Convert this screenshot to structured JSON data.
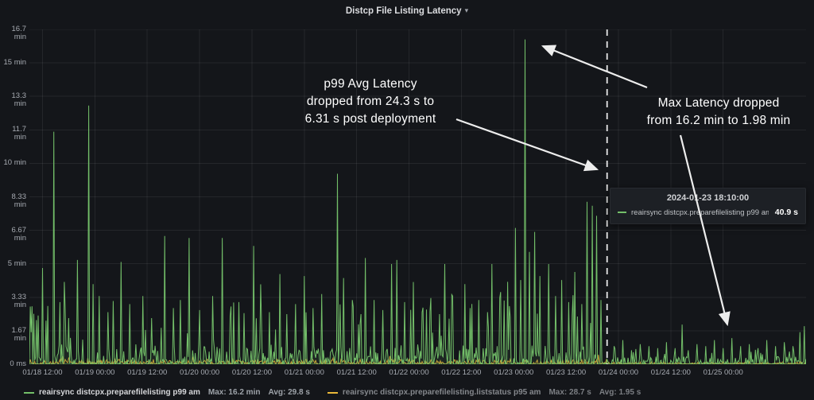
{
  "header": {
    "title": "Distcp File Listing Latency"
  },
  "icons": {
    "caret": "▾"
  },
  "chart_data": {
    "type": "line",
    "title": "Distcp File Listing Latency",
    "grid": true,
    "legend_position": "bottom-left",
    "y_axis": {
      "max_minutes": 16.7,
      "min": 0
    },
    "x_axis": {
      "span_hours": 178,
      "first_tick_hour": 3,
      "tick_interval_hours": 12,
      "start": "01/18 12:00"
    },
    "y_ticks": [
      "0 ms",
      "1.67 min",
      "3.33 min",
      "5 min",
      "6.67 min",
      "8.33 min",
      "10 min",
      "11.7 min",
      "13.3 min",
      "15 min",
      "16.7 min"
    ],
    "x_ticks": [
      "01/18 12:00",
      "01/19 00:00",
      "01/19 12:00",
      "01/20 00:00",
      "01/20 12:00",
      "01/21 00:00",
      "01/21 12:00",
      "01/22 00:00",
      "01/22 12:00",
      "01/23 00:00",
      "01/23 12:00",
      "01/24 00:00",
      "01/24 12:00",
      "01/25 00:00"
    ],
    "deployment_hour": 132.4,
    "deployment_time": "2024-01-23 18:10:00",
    "series": [
      {
        "name": "reairsync distcpx.preparefilelisting p99 am",
        "color": "#73bf69",
        "max": "16.2 min",
        "avg": "29.8 s",
        "unit": "minutes",
        "spikes": [
          [
            1.5,
            2.2
          ],
          [
            3,
            4.8
          ],
          [
            5.6,
            11.6
          ],
          [
            7,
            3.1
          ],
          [
            9,
            2.3
          ],
          [
            11,
            5.2
          ],
          [
            13.5,
            12.9
          ],
          [
            14.5,
            4.0
          ],
          [
            16,
            3.4
          ],
          [
            18,
            2.6
          ],
          [
            21,
            5.1
          ],
          [
            23,
            3.0
          ],
          [
            26,
            3.4
          ],
          [
            28,
            2.3
          ],
          [
            31,
            6.4
          ],
          [
            33,
            2.8
          ],
          [
            34.5,
            3.2
          ],
          [
            36.5,
            6.3
          ],
          [
            39,
            2.7
          ],
          [
            42,
            3.4
          ],
          [
            44.3,
            6.3
          ],
          [
            46,
            2.4
          ],
          [
            48,
            3.1
          ],
          [
            51.4,
            5.9
          ],
          [
            53,
            3.3
          ],
          [
            55,
            2.6
          ],
          [
            57.4,
            4.5
          ],
          [
            59,
            2.5
          ],
          [
            61,
            3.0
          ],
          [
            63,
            4.4
          ],
          [
            65,
            2.8
          ],
          [
            67,
            3.5
          ],
          [
            70.5,
            9.5
          ],
          [
            72,
            4.3
          ],
          [
            74,
            3.2
          ],
          [
            76,
            2.5
          ],
          [
            77.1,
            5.3
          ],
          [
            79,
            3.2
          ],
          [
            81,
            2.7
          ],
          [
            83,
            5.0
          ],
          [
            84.3,
            5.2
          ],
          [
            86,
            3.1
          ],
          [
            88,
            4.1
          ],
          [
            90,
            2.6
          ],
          [
            92,
            3.3
          ],
          [
            94,
            2.5
          ],
          [
            95.3,
            5.0
          ],
          [
            97,
            3.4
          ],
          [
            99.8,
            4.0
          ],
          [
            101,
            2.8
          ],
          [
            103,
            3.2
          ],
          [
            105,
            2.6
          ],
          [
            106,
            5.0
          ],
          [
            108,
            3.6
          ],
          [
            110,
            2.9
          ],
          [
            111.3,
            6.8
          ],
          [
            112.5,
            4.2
          ],
          [
            113.5,
            16.2
          ],
          [
            114.5,
            5.6
          ],
          [
            115.7,
            6.6
          ],
          [
            117,
            4.4
          ],
          [
            119,
            5.0
          ],
          [
            120.5,
            3.4
          ],
          [
            122,
            4.2
          ],
          [
            123.5,
            3.1
          ],
          [
            125,
            4.6
          ],
          [
            126.5,
            3.0
          ],
          [
            127.7,
            8.1
          ],
          [
            129,
            7.9
          ],
          [
            129.9,
            7.4
          ],
          [
            131,
            3.2
          ],
          [
            134,
            0.9
          ],
          [
            136,
            1.2
          ],
          [
            138,
            0.7
          ],
          [
            140,
            1.0
          ],
          [
            142,
            0.9
          ],
          [
            144,
            0.8
          ],
          [
            146,
            1.1
          ],
          [
            148,
            0.8
          ],
          [
            149.5,
            1.98
          ],
          [
            151,
            0.7
          ],
          [
            153,
            1.0
          ],
          [
            155,
            0.9
          ],
          [
            157,
            1.2
          ],
          [
            159,
            0.8
          ],
          [
            161,
            1.3
          ],
          [
            163,
            0.9
          ],
          [
            165,
            1.0
          ],
          [
            167,
            0.8
          ],
          [
            169,
            1.2
          ],
          [
            171,
            0.9
          ],
          [
            173,
            1.1
          ],
          [
            175,
            0.9
          ],
          [
            176.5,
            1.6
          ],
          [
            177.5,
            1.9
          ]
        ]
      },
      {
        "name": "reairsync distcpx.preparefilelisting.liststatus p95 am",
        "color": "#eab839",
        "max": "28.7 s",
        "avg": "1.95 s",
        "unit": "minutes"
      }
    ]
  },
  "annotations": {
    "p99_line1": "p99 Avg Latency",
    "p99_line2": "dropped from 24.3 s to",
    "p99_line3": "6.31 s post deployment",
    "max_line1": "Max Latency dropped",
    "max_line2": "from 16.2 min to 1.98 min"
  },
  "tooltip": {
    "timestamp": "2024-01-23 18:10:00",
    "series_label": "reairsync distcpx.preparefilelisting p99 am:",
    "value": "40.9 s"
  },
  "legend": [
    {
      "label": "reairsync distcpx.preparefilelisting p99 am",
      "max": "Max: 16.2 min",
      "avg": "Avg: 29.8 s",
      "color": "#73bf69"
    },
    {
      "label": "reairsync distcpx.preparefilelisting.liststatus p95 am",
      "max": "Max: 28.7 s",
      "avg": "Avg: 1.95 s",
      "color": "#eab839"
    }
  ]
}
